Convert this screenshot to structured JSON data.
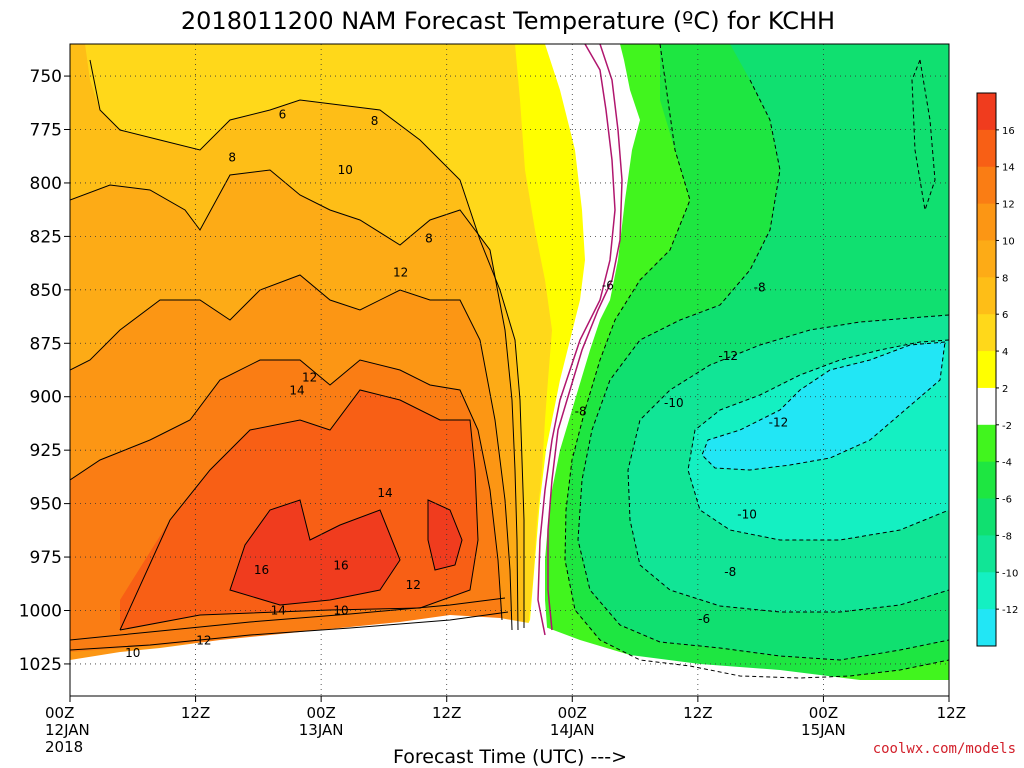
{
  "chart_data": {
    "type": "heatmap",
    "title": "2018011200 NAM Forecast Temperature (ºC) for KCHH",
    "xlabel": "Forecast Time (UTC) --->",
    "credit": "coolwx.com/models",
    "y_axis": {
      "inverted": true,
      "range": [
        1040,
        735
      ],
      "ticks": [
        750,
        775,
        800,
        825,
        850,
        875,
        900,
        925,
        950,
        975,
        1000,
        1025
      ]
    },
    "x_axis": {
      "range_hours": [
        0,
        84
      ],
      "ticks": [
        {
          "h": 0,
          "lines": [
            "00Z",
            "12JAN",
            "2018"
          ]
        },
        {
          "h": 12,
          "lines": [
            "12Z"
          ]
        },
        {
          "h": 24,
          "lines": [
            "00Z",
            "13JAN"
          ]
        },
        {
          "h": 36,
          "lines": [
            "12Z"
          ]
        },
        {
          "h": 48,
          "lines": [
            "00Z",
            "14JAN"
          ]
        },
        {
          "h": 60,
          "lines": [
            "12Z"
          ]
        },
        {
          "h": 72,
          "lines": [
            "00Z",
            "15JAN"
          ]
        },
        {
          "h": 84,
          "lines": [
            "12Z"
          ]
        }
      ]
    },
    "gridlines": true,
    "colorbar": {
      "placement": "right",
      "ticks": [
        16,
        14,
        12,
        10,
        8,
        6,
        4,
        2,
        -2,
        -4,
        -6,
        -8,
        -10,
        -12
      ],
      "bins": [
        {
          "color": "#f03c1e"
        },
        {
          "color": "#f85f15"
        },
        {
          "color": "#fa7d14"
        },
        {
          "color": "#fc9614"
        },
        {
          "color": "#fdab16"
        },
        {
          "color": "#febe17"
        },
        {
          "color": "#ffd81a"
        },
        {
          "color": "#ffff00"
        },
        {
          "color": "#ffffff"
        },
        {
          "color": "#41f51e"
        },
        {
          "color": "#1ee641"
        },
        {
          "color": "#10e070"
        },
        {
          "color": "#11e596"
        },
        {
          "color": "#14f0c2"
        },
        {
          "color": "#22e6f5"
        }
      ]
    },
    "contour_labels": [
      {
        "text": "6",
        "h": 20.3,
        "p": 768
      },
      {
        "text": "8",
        "h": 29.1,
        "p": 771
      },
      {
        "text": "8",
        "h": 15.5,
        "p": 788
      },
      {
        "text": "10",
        "h": 26.3,
        "p": 794
      },
      {
        "text": "8",
        "h": 34.3,
        "p": 826
      },
      {
        "text": "12",
        "h": 31.6,
        "p": 842
      },
      {
        "text": "12",
        "h": 22.9,
        "p": 891
      },
      {
        "text": "14",
        "h": 21.7,
        "p": 897
      },
      {
        "text": "14",
        "h": 30.1,
        "p": 945
      },
      {
        "text": "16",
        "h": 18.3,
        "p": 981
      },
      {
        "text": "16",
        "h": 25.9,
        "p": 979
      },
      {
        "text": "14",
        "h": 19.9,
        "p": 1000
      },
      {
        "text": "10",
        "h": 25.9,
        "p": 1000
      },
      {
        "text": "12",
        "h": 32.8,
        "p": 988
      },
      {
        "text": "12",
        "h": 12.8,
        "p": 1014
      },
      {
        "text": "10",
        "h": 6.0,
        "p": 1020
      },
      {
        "text": "-6",
        "h": 51.4,
        "p": 848
      },
      {
        "text": "-8",
        "h": 65.9,
        "p": 849
      },
      {
        "text": "-12",
        "h": 62.9,
        "p": 881
      },
      {
        "text": "-10",
        "h": 57.7,
        "p": 903
      },
      {
        "text": "-8",
        "h": 48.8,
        "p": 907
      },
      {
        "text": "-12",
        "h": 67.7,
        "p": 912
      },
      {
        "text": "-10",
        "h": 64.7,
        "p": 955
      },
      {
        "text": "-8",
        "h": 63.1,
        "p": 982
      },
      {
        "text": "-6",
        "h": 60.6,
        "p": 1004
      }
    ]
  }
}
